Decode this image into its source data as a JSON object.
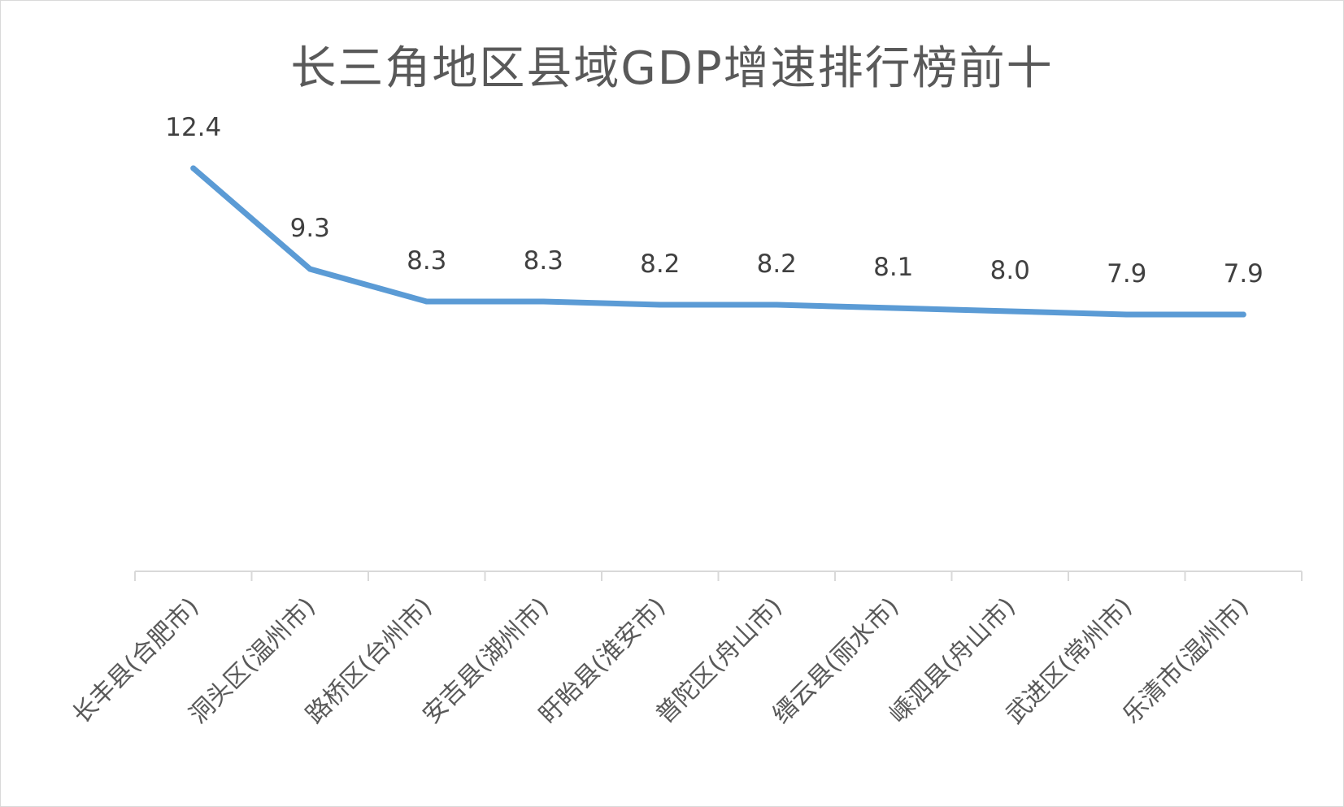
{
  "chart_data": {
    "type": "line",
    "title": "长三角地区县域GDP增速排行榜前十",
    "categories": [
      "长丰县(合肥市)",
      "洞头区(温州市)",
      "路桥区(台州市)",
      "安吉县(湖州市)",
      "盱眙县(淮安市)",
      "普陀区(舟山市)",
      "缙云县(丽水市)",
      "嵊泗县(舟山市)",
      "武进区(常州市)",
      "乐清市(温州市)"
    ],
    "series": [
      {
        "values": [
          12.4,
          9.3,
          8.3,
          8.3,
          8.2,
          8.2,
          8.1,
          8.0,
          7.9,
          7.9
        ]
      }
    ],
    "data_labels": [
      "12.4",
      "9.3",
      "8.3",
      "8.3",
      "8.2",
      "8.2",
      "8.1",
      "8.0",
      "7.9",
      "7.9"
    ],
    "ylim": [
      0,
      14
    ],
    "xlabel": "",
    "ylabel": "",
    "grid": false,
    "legend": "none",
    "line_color": "#5b9bd5",
    "axis_color": "#d9d9d9"
  }
}
